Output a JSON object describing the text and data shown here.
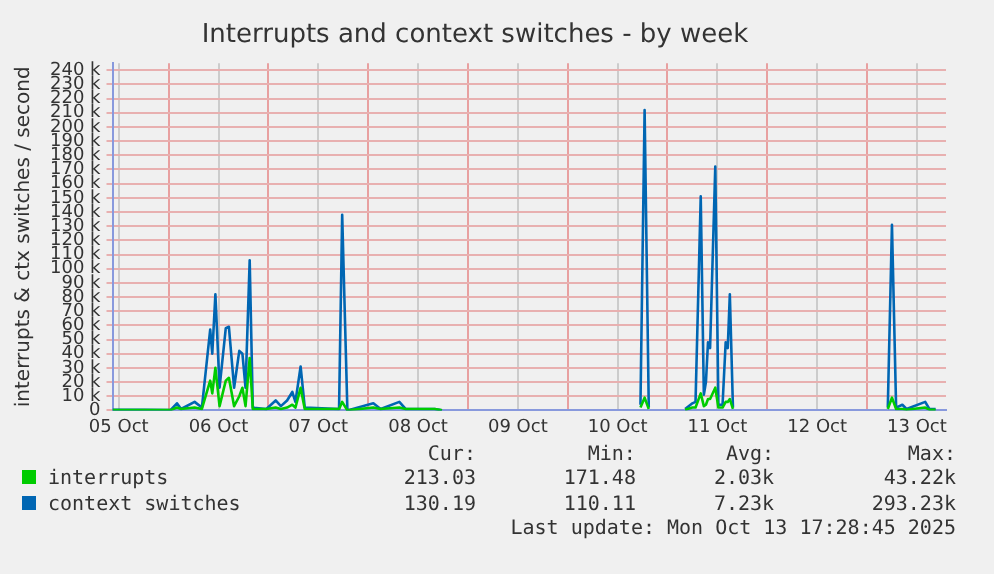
{
  "chart_data": {
    "type": "line",
    "title": "Interrupts and context switches - by week",
    "ylabel": "interrupts & ctx switches / second",
    "x": [
      "2025-10-05T10:30",
      "2025-10-05T18:00",
      "2025-10-06T00:30",
      "2025-10-06T02:00",
      "2025-10-06T03:00",
      "2025-10-06T06:15",
      "2025-10-06T08:00",
      "2025-10-06T10:00",
      "2025-10-06T10:30",
      "2025-10-06T11:15",
      "2025-10-06T12:15",
      "2025-10-06T13:45",
      "2025-10-06T14:30",
      "2025-10-06T15:45",
      "2025-10-06T17:00",
      "2025-10-06T17:45",
      "2025-10-06T18:30",
      "2025-10-06T19:30",
      "2025-10-06T20:15",
      "2025-10-06T23:30",
      "2025-10-07T01:45",
      "2025-10-07T03:00",
      "2025-10-07T04:30",
      "2025-10-07T05:45",
      "2025-10-07T06:30",
      "2025-10-07T07:45",
      "2025-10-07T08:45",
      "2025-10-07T17:00",
      "2025-10-07T17:45",
      "2025-10-07T19:00",
      "2025-10-08T01:15",
      "2025-10-08T03:00",
      "2025-10-08T07:30",
      "2025-10-08T09:00",
      "2025-10-08T16:00",
      "2025-10-08T17:45",
      "2025-10-09T12:00",
      "2025-10-10T17:30",
      "2025-10-10T18:30",
      "2025-10-10T19:30",
      "2025-10-11T00:00",
      "2025-10-11T04:15",
      "2025-10-11T06:00",
      "2025-10-11T06:45",
      "2025-10-11T08:00",
      "2025-10-11T08:45",
      "2025-10-11T09:15",
      "2025-10-11T09:45",
      "2025-10-11T10:15",
      "2025-10-11T11:30",
      "2025-10-11T12:15",
      "2025-10-11T13:15",
      "2025-10-11T14:00",
      "2025-10-11T14:30",
      "2025-10-11T15:00",
      "2025-10-11T15:45",
      "2025-10-12T12:00",
      "2025-10-13T05:00",
      "2025-10-13T06:00",
      "2025-10-13T07:00",
      "2025-10-13T08:30",
      "2025-10-13T09:30",
      "2025-10-13T14:00",
      "2025-10-13T15:00",
      "2025-10-13T16:30"
    ],
    "series": [
      {
        "name": "interrupts",
        "color": "#00cc00",
        "values": [
          300,
          300,
          200,
          2000,
          1000,
          2000,
          1000,
          21000,
          12000,
          30000,
          3000,
          21000,
          23000,
          3000,
          10000,
          16000,
          3000,
          37000,
          1000,
          1000,
          2000,
          1000,
          2000,
          4000,
          2000,
          16000,
          1000,
          1000,
          6000,
          0,
          2000,
          1000,
          2000,
          1000,
          1000,
          0,
          null,
          2000,
          9000,
          1000,
          null,
          500,
          2000,
          2000,
          12000,
          3000,
          4000,
          8000,
          8000,
          16000,
          2000,
          2000,
          6000,
          6000,
          8000,
          1000,
          null,
          1000,
          9000,
          1000,
          1000,
          500,
          2000,
          500,
          500
        ]
      },
      {
        "name": "context switches",
        "color": "#0066b3",
        "values": [
          500,
          500,
          300,
          5000,
          1000,
          6000,
          2000,
          57000,
          40000,
          82000,
          16000,
          58000,
          59000,
          16000,
          42000,
          40000,
          16000,
          106000,
          2000,
          1000,
          7000,
          3000,
          7000,
          13000,
          6000,
          31000,
          2000,
          1000,
          138000,
          0,
          5000,
          1000,
          6000,
          1000,
          1000,
          0,
          null,
          4000,
          212000,
          2000,
          null,
          1000,
          5000,
          6000,
          151000,
          11000,
          20000,
          48000,
          44000,
          172000,
          4000,
          4000,
          48000,
          44000,
          82000,
          2000,
          null,
          2000,
          131000,
          2000,
          4000,
          1000,
          6000,
          1000,
          1000
        ]
      }
    ],
    "xlim": [
      "2025-10-05T10:30",
      "2025-10-13T19:00"
    ],
    "xticks": [
      {
        "value": "2025-10-05T12:00",
        "label": "05 Oct"
      },
      {
        "value": "2025-10-06T00:00",
        "label": null
      },
      {
        "value": "2025-10-06T12:00",
        "label": "06 Oct"
      },
      {
        "value": "2025-10-07T00:00",
        "label": null
      },
      {
        "value": "2025-10-07T12:00",
        "label": "07 Oct"
      },
      {
        "value": "2025-10-08T00:00",
        "label": null
      },
      {
        "value": "2025-10-08T12:00",
        "label": "08 Oct"
      },
      {
        "value": "2025-10-09T00:00",
        "label": null
      },
      {
        "value": "2025-10-09T12:00",
        "label": "09 Oct"
      },
      {
        "value": "2025-10-10T00:00",
        "label": null
      },
      {
        "value": "2025-10-10T12:00",
        "label": "10 Oct"
      },
      {
        "value": "2025-10-11T00:00",
        "label": null
      },
      {
        "value": "2025-10-11T12:00",
        "label": "11 Oct"
      },
      {
        "value": "2025-10-12T00:00",
        "label": null
      },
      {
        "value": "2025-10-12T12:00",
        "label": "12 Oct"
      },
      {
        "value": "2025-10-13T00:00",
        "label": null
      },
      {
        "value": "2025-10-13T12:00",
        "label": "13 Oct"
      }
    ],
    "ylim": [
      0,
      245000
    ],
    "yticks": [
      0,
      {
        "value": 10000,
        "label": "10 k"
      },
      {
        "value": 20000,
        "label": "20 k"
      },
      {
        "value": 30000,
        "label": "30 k"
      },
      {
        "value": 40000,
        "label": "40 k"
      },
      {
        "value": 50000,
        "label": "50 k"
      },
      {
        "value": 60000,
        "label": "60 k"
      },
      {
        "value": 70000,
        "label": "70 k"
      },
      {
        "value": 80000,
        "label": "80 k"
      },
      {
        "value": 90000,
        "label": "90 k"
      },
      {
        "value": 100000,
        "label": "100 k"
      },
      {
        "value": 110000,
        "label": "110 k"
      },
      {
        "value": 120000,
        "label": "120 k"
      },
      {
        "value": 130000,
        "label": "130 k"
      },
      {
        "value": 140000,
        "label": "140 k"
      },
      {
        "value": 150000,
        "label": "150 k"
      },
      {
        "value": 160000,
        "label": "160 k"
      },
      {
        "value": 170000,
        "label": "170 k"
      },
      {
        "value": 180000,
        "label": "180 k"
      },
      {
        "value": 190000,
        "label": "190 k"
      },
      {
        "value": 200000,
        "label": "200 k"
      },
      {
        "value": 210000,
        "label": "210 k"
      },
      {
        "value": 220000,
        "label": "220 k"
      },
      {
        "value": 230000,
        "label": "230 k"
      },
      {
        "value": 240000,
        "label": "240 k"
      }
    ],
    "grid": true,
    "legend": "bottom",
    "marker": "none",
    "line_style": "solid",
    "annotations": [
      "Cur:",
      "Min:",
      "Avg:",
      "Max:",
      "213.03",
      "171.48",
      "2.03k",
      "43.22k",
      "130.19",
      "110.11",
      "7.23k",
      "293.23k",
      "Last update: Mon Oct 13 17:28:45 2025"
    ]
  }
}
